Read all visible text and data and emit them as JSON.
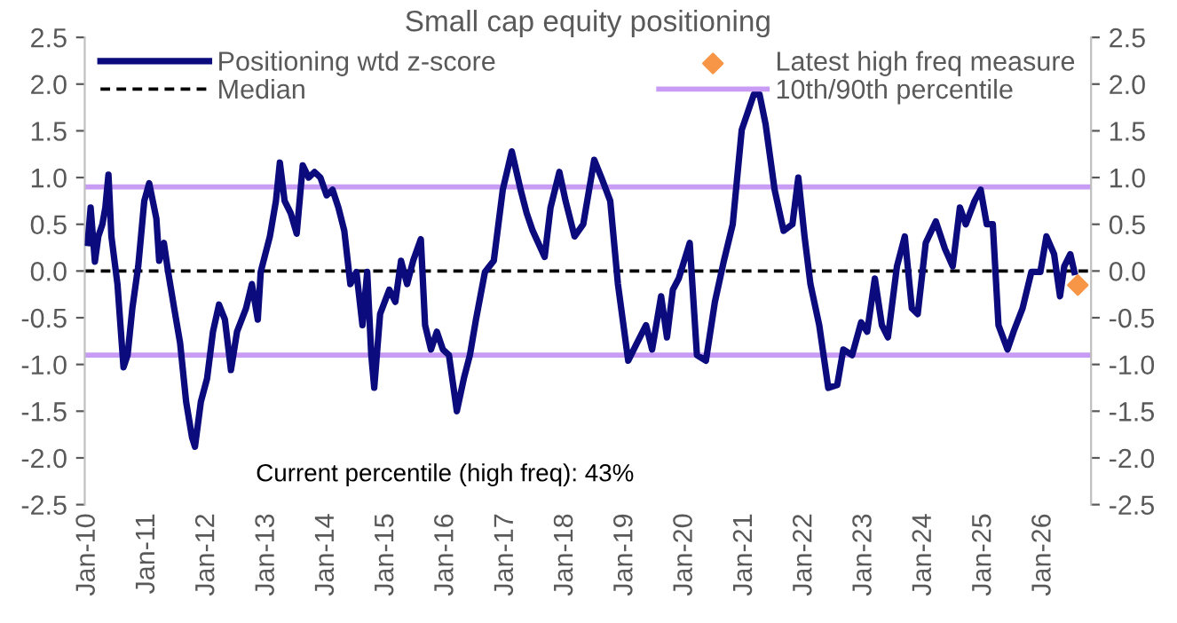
{
  "chart_data": {
    "type": "line",
    "title": "Small cap equity positioning",
    "x": [
      "2010-01-01",
      "2010-01-19",
      "2010-02-14",
      "2010-03-07",
      "2010-04-01",
      "2010-04-19",
      "2010-05-08",
      "2010-05-26",
      "2010-07-02",
      "2010-08-08",
      "2010-09-02",
      "2010-10-01",
      "2010-11-06",
      "2010-12-13",
      "2011-01-12",
      "2011-02-25",
      "2011-03-14",
      "2011-04-12",
      "2011-05-08",
      "2011-06-14",
      "2011-07-20",
      "2011-08-26",
      "2011-10-01",
      "2011-10-19",
      "2011-11-24",
      "2012-01-01",
      "2012-02-06",
      "2012-03-14",
      "2012-04-19",
      "2012-05-26",
      "2012-07-02",
      "2012-08-26",
      "2012-10-01",
      "2012-11-06",
      "2012-11-24",
      "2013-01-19",
      "2013-02-25",
      "2013-03-21",
      "2013-04-19",
      "2013-05-26",
      "2013-07-02",
      "2013-08-08",
      "2013-09-13",
      "2013-10-19",
      "2013-11-24",
      "2014-01-01",
      "2014-02-06",
      "2014-03-14",
      "2014-04-19",
      "2014-05-26",
      "2014-07-02",
      "2014-08-08",
      "2014-09-06",
      "2014-10-01",
      "2014-10-19",
      "2014-11-24",
      "2015-01-19",
      "2015-02-25",
      "2015-04-01",
      "2015-05-08",
      "2015-06-14",
      "2015-07-31",
      "2015-08-26",
      "2015-10-01",
      "2015-11-06",
      "2015-12-13",
      "2016-01-19",
      "2016-03-07",
      "2016-04-19",
      "2016-05-26",
      "2016-07-02",
      "2016-08-26",
      "2016-10-19",
      "2016-12-13",
      "2017-02-06",
      "2017-04-01",
      "2017-05-08",
      "2017-06-14",
      "2017-08-26",
      "2017-10-01",
      "2017-11-24",
      "2018-01-01",
      "2018-02-25",
      "2018-04-19",
      "2018-06-25",
      "2018-08-08",
      "2018-10-01",
      "2018-11-17",
      "2019-01-19",
      "2019-03-14",
      "2019-05-08",
      "2019-06-14",
      "2019-08-08",
      "2019-09-13",
      "2019-10-19",
      "2019-11-24",
      "2020-01-30",
      "2020-03-14",
      "2020-05-08",
      "2020-07-02",
      "2020-08-26",
      "2020-10-19",
      "2020-12-13",
      "2021-02-25",
      "2021-04-01",
      "2021-05-08",
      "2021-07-02",
      "2021-08-26",
      "2021-10-19",
      "2021-11-24",
      "2022-01-01",
      "2022-02-06",
      "2022-04-01",
      "2022-05-26",
      "2022-07-20",
      "2022-08-26",
      "2022-10-19",
      "2022-12-13",
      "2023-01-19",
      "2023-03-07",
      "2023-04-19",
      "2023-05-26",
      "2023-07-20",
      "2023-09-06",
      "2023-10-19",
      "2023-11-24",
      "2024-01-12",
      "2024-03-14",
      "2024-05-08",
      "2024-06-25",
      "2024-08-08",
      "2024-09-13",
      "2024-11-06",
      "2024-12-13",
      "2025-01-19",
      "2025-02-25",
      "2025-04-01",
      "2025-05-26",
      "2025-07-02",
      "2025-08-26",
      "2025-10-19",
      "2025-12-13",
      "2026-01-19",
      "2026-03-07",
      "2026-04-12",
      "2026-05-08",
      "2026-06-14",
      "2026-07-09"
    ],
    "series": [
      {
        "name": "Positioning wtd z-score",
        "color": "#0b0b7e",
        "values": [
          0.3,
          0.68,
          0.1,
          0.37,
          0.5,
          0.68,
          1.03,
          0.37,
          -0.14,
          -1.03,
          -0.9,
          -0.4,
          0.05,
          0.75,
          0.94,
          0.56,
          0.11,
          0.3,
          -0.01,
          -0.4,
          -0.77,
          -1.4,
          -1.78,
          -1.88,
          -1.4,
          -1.15,
          -0.65,
          -0.36,
          -0.52,
          -1.06,
          -0.65,
          -0.4,
          -0.14,
          -0.52,
          -0.01,
          0.37,
          0.75,
          1.16,
          0.75,
          0.62,
          0.4,
          1.13,
          1.0,
          1.06,
          1.0,
          0.81,
          0.87,
          0.68,
          0.43,
          -0.14,
          -0.01,
          -0.58,
          -0.01,
          -0.9,
          -1.25,
          -0.46,
          -0.2,
          -0.33,
          0.11,
          -0.14,
          0.11,
          0.34,
          -0.58,
          -0.84,
          -0.65,
          -0.84,
          -0.9,
          -1.5,
          -1.15,
          -0.9,
          -0.52,
          -0.01,
          0.11,
          0.87,
          1.28,
          0.87,
          0.62,
          0.43,
          0.15,
          0.68,
          1.06,
          0.75,
          0.37,
          0.5,
          1.19,
          1.0,
          0.75,
          -0.14,
          -0.96,
          -0.77,
          -0.58,
          -0.84,
          -0.27,
          -0.71,
          -0.2,
          -0.08,
          0.3,
          -0.9,
          -0.96,
          -0.33,
          0.11,
          0.5,
          1.51,
          1.89,
          1.89,
          1.57,
          0.87,
          0.43,
          0.5,
          1.0,
          0.37,
          -0.14,
          -0.58,
          -1.25,
          -1.22,
          -0.84,
          -0.9,
          -0.55,
          -0.65,
          -0.08,
          -0.58,
          -0.71,
          0.05,
          0.37,
          -0.4,
          -0.46,
          0.3,
          0.53,
          0.24,
          0.05,
          0.68,
          0.5,
          0.75,
          0.87,
          0.5,
          0.5,
          -0.58,
          -0.84,
          -0.65,
          -0.4,
          -0.01,
          -0.01,
          0.37,
          0.18,
          -0.27,
          0.05,
          0.18,
          -0.01
        ]
      },
      {
        "name": "Latest high freq measure",
        "type": "scatter",
        "marker": "diamond",
        "color": "#f79646",
        "x": [
          "2026-07-30"
        ],
        "values": [
          -0.15
        ]
      }
    ],
    "ref_lines": [
      {
        "axis": "y",
        "value": 0,
        "label": "Median",
        "color": "#000000",
        "line_style": "dashed"
      },
      {
        "axis": "y",
        "value": 0.9,
        "label": "10th/90th percentile",
        "color": "#c89bf5",
        "line_style": "solid"
      },
      {
        "axis": "y",
        "value": -0.9,
        "color": "#c89bf5",
        "line_style": "solid"
      }
    ],
    "xlim": [
      "2009-12-14",
      "2026-10-19"
    ],
    "xticks": [
      {
        "value": "2010-01",
        "label": "Jan-10"
      },
      {
        "value": "2011-01",
        "label": "Jan-11"
      },
      {
        "value": "2012-01",
        "label": "Jan-12"
      },
      {
        "value": "2013-01",
        "label": "Jan-13"
      },
      {
        "value": "2014-01",
        "label": "Jan-14"
      },
      {
        "value": "2015-01",
        "label": "Jan-15"
      },
      {
        "value": "2016-01",
        "label": "Jan-16"
      },
      {
        "value": "2017-01",
        "label": "Jan-17"
      },
      {
        "value": "2018-01",
        "label": "Jan-18"
      },
      {
        "value": "2019-01",
        "label": "Jan-19"
      },
      {
        "value": "2020-01",
        "label": "Jan-20"
      },
      {
        "value": "2021-01",
        "label": "Jan-21"
      },
      {
        "value": "2022-01",
        "label": "Jan-22"
      },
      {
        "value": "2023-01",
        "label": "Jan-23"
      },
      {
        "value": "2024-01",
        "label": "Jan-24"
      },
      {
        "value": "2025-01",
        "label": "Jan-25"
      },
      {
        "value": "2026-01",
        "label": "Jan-26"
      }
    ],
    "ylim": [
      -2.5,
      2.5
    ],
    "yticks": [
      -2.5,
      {
        "value": -2,
        "label": "-2.0"
      },
      -1.5,
      {
        "value": -1,
        "label": "-1.0"
      },
      -0.5,
      {
        "value": 0,
        "label": "0.0"
      },
      0.5,
      {
        "value": 1,
        "label": "1.0"
      },
      1.5,
      {
        "value": 2,
        "label": "2.0"
      },
      2.5
    ],
    "y2lim": [
      -2.5,
      2.5
    ],
    "y2ticks": [
      -2.5,
      {
        "value": -2,
        "label": "-2.0"
      },
      -1.5,
      {
        "value": -1,
        "label": "-1.0"
      },
      -0.5,
      {
        "value": 0,
        "label": "0.0"
      },
      0.5,
      {
        "value": 1,
        "label": "1.0"
      },
      1.5,
      {
        "value": 2,
        "label": "2.0"
      },
      2.5
    ],
    "annotations": [
      "Current percentile (high freq): 43%"
    ],
    "legend": "top",
    "grid": false
  }
}
